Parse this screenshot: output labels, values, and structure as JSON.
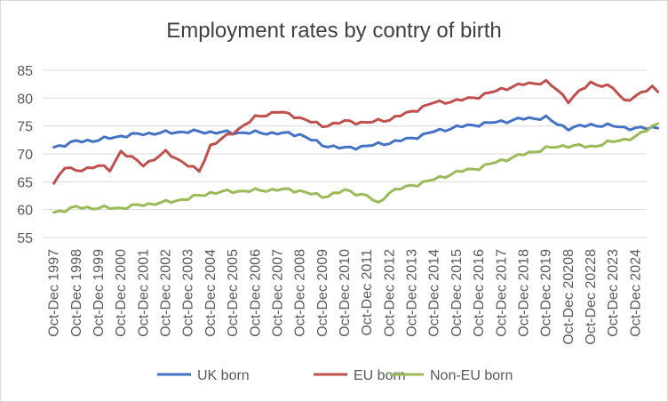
{
  "chart_data": {
    "type": "line",
    "title": "Employment rates by contry of birth",
    "xlabel": "",
    "ylabel": "",
    "ylim": [
      55,
      85
    ],
    "yticks": [
      55,
      60,
      65,
      70,
      75,
      80,
      85
    ],
    "grid": true,
    "legend_position": "bottom",
    "x_tick_labels": [
      "Oct-Dec 1997",
      "Oct-Dec 1998",
      "Oct-Dec 1999",
      "Oct-Dec 2000",
      "Oct-Dec 2001",
      "Oct-Dec 2002",
      "Oct-Dec 2003",
      "Oct-Dec 2004",
      "Oct-Dec 2005",
      "Oct-Dec 2006",
      "Oct-Dec 2007",
      "Oct-Dec 2008",
      "Oct-Dec 2009",
      "Oct-Dec 2010",
      "Oct-Dec 2011",
      "Oct-Dec 2012",
      "Oct-Dec 2013",
      "Oct-Dec 2014",
      "Oct-Dec 2015",
      "Oct-Dec 2016",
      "Oct-Dec 2017",
      "Oct-Dec 2018",
      "Oct-Dec 2019",
      "Oct-Dec 20208",
      "Oct-Dec 20228",
      "Oct-Dec 2023",
      "Oct-Dec 2024"
    ],
    "series": [
      {
        "name": "UK born",
        "color": "#4472C4",
        "anchors": [
          [
            0,
            71.2
          ],
          [
            1,
            72.2
          ],
          [
            2,
            72.5
          ],
          [
            3,
            73.2
          ],
          [
            4,
            73.6
          ],
          [
            5,
            73.8
          ],
          [
            6,
            74.0
          ],
          [
            7,
            73.9
          ],
          [
            8,
            73.8
          ],
          [
            9,
            73.8
          ],
          [
            10,
            73.7
          ],
          [
            11,
            73.5
          ],
          [
            12,
            71.6
          ],
          [
            13,
            71.0
          ],
          [
            14,
            71.4
          ],
          [
            15,
            72.0
          ],
          [
            16,
            72.8
          ],
          [
            17,
            74.0
          ],
          [
            18,
            74.8
          ],
          [
            19,
            75.3
          ],
          [
            20,
            75.8
          ],
          [
            21,
            76.3
          ],
          [
            22,
            76.5
          ],
          [
            22.5,
            75.3
          ],
          [
            23,
            74.6
          ],
          [
            24,
            75.2
          ],
          [
            25,
            75.0
          ],
          [
            26,
            74.5
          ],
          [
            27,
            74.8
          ]
        ]
      },
      {
        "name": "EU born",
        "color": "#C0504D",
        "anchors": [
          [
            0,
            64.7
          ],
          [
            0.5,
            67.8
          ],
          [
            1,
            66.8
          ],
          [
            2,
            68.0
          ],
          [
            2.5,
            67.0
          ],
          [
            3,
            70.5
          ],
          [
            4,
            68.0
          ],
          [
            5,
            70.3
          ],
          [
            6,
            68.0
          ],
          [
            6.5,
            66.8
          ],
          [
            7,
            71.5
          ],
          [
            8,
            73.8
          ],
          [
            9,
            76.5
          ],
          [
            10,
            77.6
          ],
          [
            11,
            76.5
          ],
          [
            12,
            75.0
          ],
          [
            13,
            75.8
          ],
          [
            14,
            75.6
          ],
          [
            15,
            76.2
          ],
          [
            16,
            77.6
          ],
          [
            17,
            79.2
          ],
          [
            18,
            79.5
          ],
          [
            19,
            80.3
          ],
          [
            20,
            81.6
          ],
          [
            21,
            82.5
          ],
          [
            22,
            82.9
          ],
          [
            22.5,
            81.5
          ],
          [
            23,
            79.5
          ],
          [
            24,
            82.8
          ],
          [
            25,
            81.8
          ],
          [
            25.5,
            79.6
          ],
          [
            26,
            80.2
          ],
          [
            26.8,
            82.2
          ],
          [
            27,
            81.3
          ]
        ]
      },
      {
        "name": "Non-EU born",
        "color": "#9BBB59",
        "anchors": [
          [
            0,
            59.5
          ],
          [
            1,
            60.4
          ],
          [
            2,
            60.3
          ],
          [
            3,
            60.3
          ],
          [
            4,
            60.9
          ],
          [
            5,
            61.3
          ],
          [
            6,
            62.0
          ],
          [
            7,
            63.0
          ],
          [
            8,
            63.3
          ],
          [
            9,
            63.4
          ],
          [
            10,
            63.6
          ],
          [
            11,
            63.4
          ],
          [
            12,
            62.3
          ],
          [
            13,
            63.4
          ],
          [
            14,
            62.5
          ],
          [
            14.5,
            61.0
          ],
          [
            15,
            63.2
          ],
          [
            16,
            64.3
          ],
          [
            17,
            65.4
          ],
          [
            18,
            66.7
          ],
          [
            19,
            67.5
          ],
          [
            20,
            68.8
          ],
          [
            21,
            69.9
          ],
          [
            22,
            71.0
          ],
          [
            23,
            71.5
          ],
          [
            24,
            71.3
          ],
          [
            25,
            72.2
          ],
          [
            26,
            73.0
          ],
          [
            26.7,
            74.8
          ],
          [
            27,
            75.6
          ]
        ]
      }
    ]
  }
}
